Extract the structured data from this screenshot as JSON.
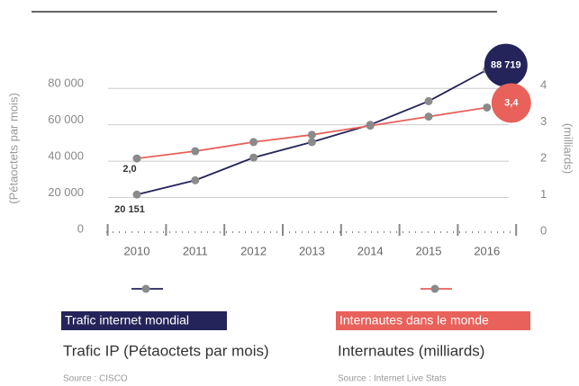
{
  "chart_data": {
    "type": "line",
    "categories": [
      "2010",
      "2011",
      "2012",
      "2013",
      "2014",
      "2015",
      "2016"
    ],
    "ylabel": "(Pétaoctets par mois)",
    "y2label": "(milliards)",
    "ylim": [
      0,
      90000
    ],
    "yticks": [
      0,
      {
        "value": 20000,
        "label": "20 000"
      },
      {
        "value": 40000,
        "label": "40 000"
      },
      {
        "value": 60000,
        "label": "60 000"
      },
      {
        "value": 80000,
        "label": "80 000"
      }
    ],
    "y2lim": [
      0,
      4.5
    ],
    "y2ticks": [
      0,
      1,
      2,
      3,
      4
    ],
    "grid": true,
    "series": [
      {
        "name": "Trafic internet mondial",
        "color": "#24245a",
        "axis": "y",
        "values": [
          20151,
          28000,
          40500,
          49000,
          58500,
          71500,
          88719
        ],
        "value_labels": [
          "20 151",
          null,
          null,
          null,
          null,
          null,
          "88 719"
        ],
        "caption": "Trafic IP (Pétaoctets par mois)",
        "source": "Source : CISCO"
      },
      {
        "name": "Internautes dans le monde",
        "color": "#e8615a",
        "axis": "y2",
        "values": [
          2.0,
          2.2,
          2.45,
          2.65,
          2.9,
          3.15,
          3.4
        ],
        "value_labels": [
          "2,0",
          null,
          null,
          null,
          null,
          null,
          "3,4"
        ],
        "caption": "Internautes (milliards)",
        "source": "Source : Internet Live Stats"
      }
    ]
  }
}
